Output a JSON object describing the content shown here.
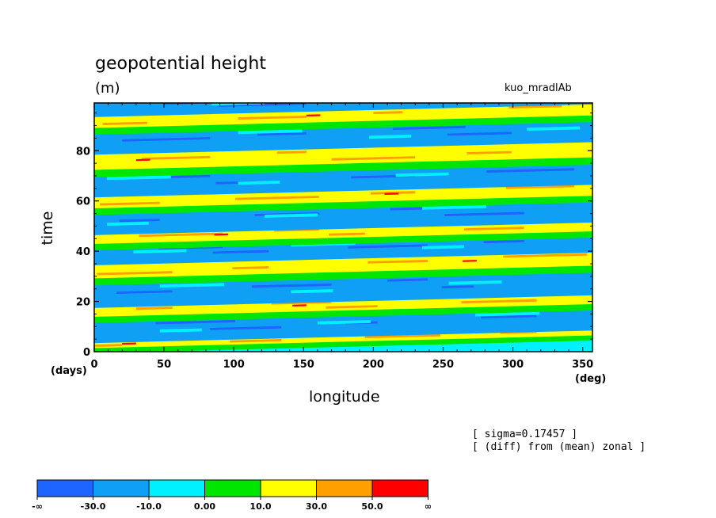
{
  "chart_data": {
    "type": "heatmap",
    "title": "geopotential height",
    "units": "(m)",
    "run_label": "kuo_mradlAb",
    "xlabel": "longitude",
    "ylabel": "time",
    "x_unit": "(deg)",
    "y_unit": "(days)",
    "xlim": [
      0,
      357
    ],
    "ylim": [
      0,
      99
    ],
    "x_ticks": [
      0,
      50,
      100,
      150,
      200,
      250,
      300,
      350
    ],
    "y_ticks": [
      0,
      20,
      40,
      60,
      80
    ],
    "annotations": [
      "[ sigma=0.17457 ]",
      "[ (diff) from (mean) zonal ]"
    ],
    "colorbar": {
      "labels": [
        "-∞",
        "-30.0",
        "-10.0",
        "0.00",
        "10.0",
        "30.0",
        "50.0",
        "∞"
      ],
      "colors": [
        "#1e64ff",
        "#0fa0f5",
        "#00f0ff",
        "#00e600",
        "#ffff00",
        "#ffa000",
        "#ff0000"
      ]
    },
    "bands": [
      {
        "t0": 1,
        "t1": 4,
        "phase": "pos"
      },
      {
        "t0": 5,
        "t1": 13,
        "phase": "neg"
      },
      {
        "t0": 13,
        "t1": 19,
        "phase": "pos"
      },
      {
        "t0": 19,
        "t1": 28,
        "phase": "neg"
      },
      {
        "t0": 28,
        "t1": 36,
        "phase": "pos"
      },
      {
        "t0": 36,
        "t1": 42,
        "phase": "neg"
      },
      {
        "t0": 42,
        "t1": 48,
        "phase": "pos"
      },
      {
        "t0": 48,
        "t1": 56,
        "phase": "neg"
      },
      {
        "t0": 56,
        "t1": 63,
        "phase": "pos"
      },
      {
        "t0": 63,
        "t1": 71,
        "phase": "neg"
      },
      {
        "t0": 71,
        "t1": 80,
        "phase": "pos"
      },
      {
        "t0": 80,
        "t1": 88,
        "phase": "neg"
      },
      {
        "t0": 88,
        "t1": 95,
        "phase": "pos"
      },
      {
        "t0": 95,
        "t1": 99,
        "phase": "neg"
      }
    ]
  }
}
